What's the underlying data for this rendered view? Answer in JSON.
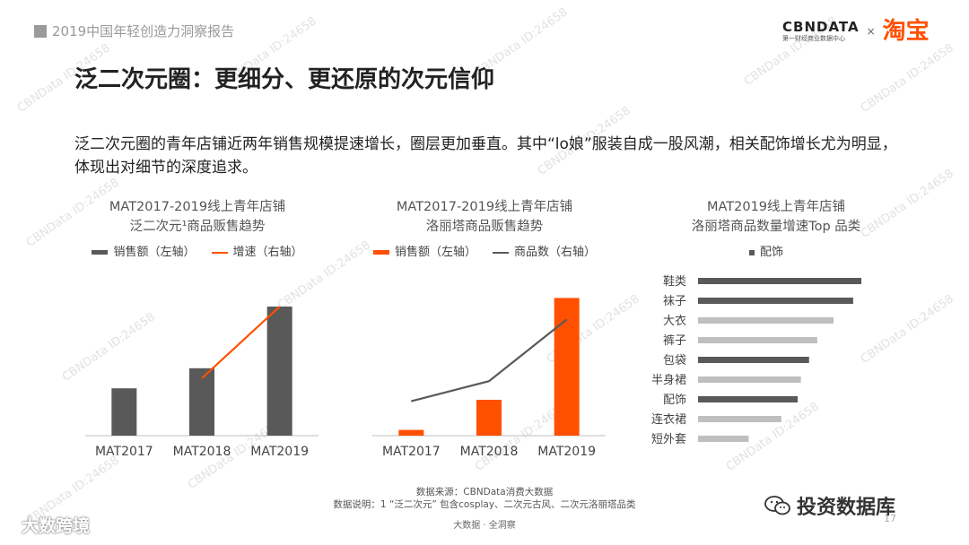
{
  "header": {
    "report_title": "2019中国年轻创造力洞察报告",
    "brand_name": "CBNDATA",
    "brand_sub": "第一财经商业数据中心",
    "brand_x": "×",
    "partner": "淘宝"
  },
  "page_title": "泛二次元圈：更细分、更还原的次元信仰",
  "intro": "泛二次元圈的青年店铺近两年销售规模提速增长，圈层更加垂直。其中“lo娘”服装自成一股风潮，相关配饰增长尤为明显，体现出对细节的深度追求。",
  "colors": {
    "dark_gray": "#595959",
    "orange": "#ff5000",
    "light_gray": "#bfbfbf",
    "line_gray": "#595959"
  },
  "chart_data": [
    {
      "type": "bar",
      "title": "MAT2017-2019线上青年店铺",
      "subtitle": "泛二次元¹商品贩售趋势",
      "legend": [
        {
          "label": "销售额（左轴）",
          "kind": "bar"
        },
        {
          "label": "增速（右轴）",
          "kind": "line"
        }
      ],
      "categories": [
        "MAT2017",
        "MAT2018",
        "MAT2019"
      ],
      "series": [
        {
          "name": "销售额（左轴）",
          "kind": "bar",
          "axis": "left",
          "values": [
            33,
            47,
            90
          ]
        },
        {
          "name": "增速（右轴）",
          "kind": "line",
          "axis": "right",
          "values": [
            null,
            40,
            90
          ]
        }
      ],
      "ylim": [
        0,
        100
      ]
    },
    {
      "type": "bar",
      "title": "MAT2017-2019线上青年店铺",
      "subtitle": "洛丽塔商品贩售趋势",
      "legend": [
        {
          "label": "销售额（左轴）",
          "kind": "bar"
        },
        {
          "label": "商品数（右轴）",
          "kind": "line"
        }
      ],
      "categories": [
        "MAT2017",
        "MAT2018",
        "MAT2019"
      ],
      "series": [
        {
          "name": "销售额（左轴）",
          "kind": "bar",
          "axis": "left",
          "values": [
            4,
            25,
            96
          ]
        },
        {
          "name": "商品数（右轴）",
          "kind": "line",
          "axis": "right",
          "values": [
            24,
            38,
            81
          ]
        }
      ],
      "ylim": [
        0,
        100
      ]
    },
    {
      "type": "bar",
      "orientation": "horizontal",
      "title": "MAT2019线上青年店铺",
      "subtitle": "洛丽塔商品数量增速Top 品类",
      "legend": [
        {
          "label": "配饰",
          "kind": "bar"
        }
      ],
      "categories": [
        "鞋类",
        "袜子",
        "大衣",
        "裤子",
        "包袋",
        "半身裙",
        "配饰",
        "连衣裙",
        "短外套"
      ],
      "values": [
        100,
        95,
        83,
        73,
        68,
        63,
        61,
        51,
        31
      ],
      "accessory": [
        true,
        true,
        false,
        false,
        true,
        false,
        true,
        false,
        false
      ],
      "xlim": [
        0,
        100
      ]
    }
  ],
  "footer": {
    "source": "数据来源：CBNData消费大数据",
    "note": "数据说明：1 “泛二次元” 包含cosplay、二次元古风、二次元洛丽塔品类",
    "center": "大数据 · 全洞察",
    "page_number": "17",
    "wm_left": "大数跨境",
    "wm_right": "投资数据库"
  }
}
